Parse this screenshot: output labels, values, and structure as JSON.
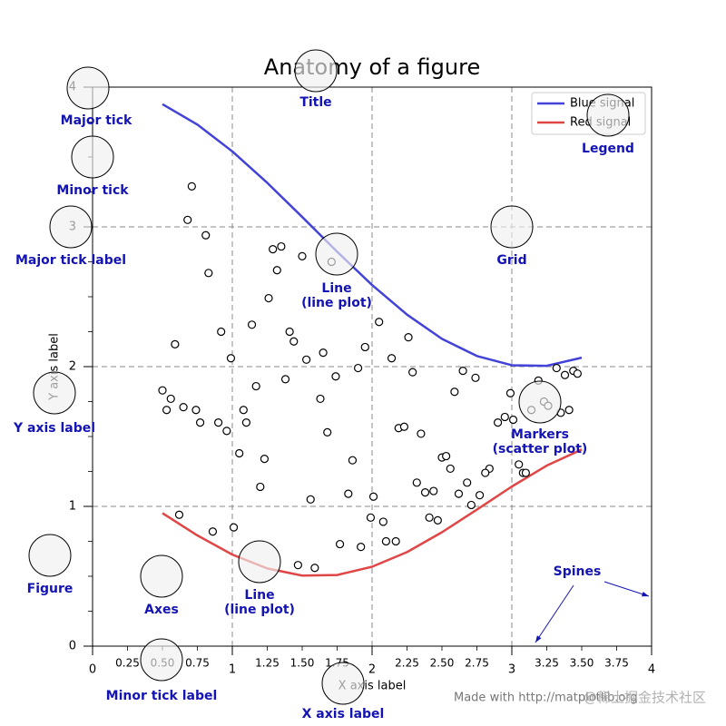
{
  "chart_data": {
    "type": "line",
    "title": "Anatomy of a figure",
    "xlabel": "X axis label",
    "ylabel": "Y axis label",
    "xlim": [
      0,
      4
    ],
    "ylim": [
      0,
      4
    ],
    "xticks": [
      0,
      1,
      2,
      3,
      4
    ],
    "xminor_ticks": [
      0.25,
      {
        "value": 0.5,
        "label": "0.50"
      },
      0.75,
      1.25,
      {
        "value": 1.5,
        "label": "1.50"
      },
      1.75,
      2.25,
      {
        "value": 2.5,
        "label": "2.50"
      },
      2.75,
      3.25,
      {
        "value": 3.5,
        "label": "3.50"
      },
      3.75
    ],
    "yticks": [
      0,
      1,
      2,
      3,
      4
    ],
    "yminor_ticks": [
      0.25,
      0.5,
      0.75,
      1.25,
      1.5,
      1.75,
      2.25,
      2.5,
      2.75,
      3.25,
      3.5,
      3.75
    ],
    "grid": true,
    "legend": "upper right",
    "x": [
      0.5,
      0.75,
      1.0,
      1.25,
      1.5,
      1.75,
      2.0,
      2.25,
      2.5,
      2.75,
      3.0,
      3.25,
      3.5
    ],
    "series": [
      {
        "name": "Blue signal",
        "color": "#4343d9",
        "values": [
          3.878,
          3.732,
          3.54,
          3.315,
          3.071,
          2.822,
          2.584,
          2.372,
          2.199,
          2.076,
          2.01,
          2.006,
          2.064
        ]
      },
      {
        "name": "Red signal",
        "color": "#e04646",
        "values": [
          0.952,
          0.792,
          0.655,
          0.556,
          0.505,
          0.509,
          0.568,
          0.673,
          0.815,
          0.977,
          1.142,
          1.292,
          1.407
        ]
      }
    ],
    "scatter": {
      "x": [
        0.71,
        0.68,
        0.81,
        0.83,
        1.29,
        1.35,
        1.32,
        1.5,
        1.71,
        1.26,
        1.14,
        0.92,
        0.59,
        0.99,
        1.41,
        1.44,
        1.65,
        1.53,
        1.95,
        2.05,
        2.26,
        2.14,
        1.9,
        1.74,
        1.38,
        1.17,
        0.5,
        0.56,
        0.53,
        0.65,
        0.74,
        0.77,
        0.9,
        0.96,
        1.08,
        1.1,
        1.63,
        1.68,
        2.29,
        2.59,
        2.65,
        2.74,
        2.19,
        2.23,
        2.35,
        1.05,
        1.23,
        1.86,
        2.5,
        2.53,
        2.56,
        2.84,
        2.81,
        2.32,
        2.38,
        2.44,
        2.68,
        2.62,
        2.77,
        2.71,
        1.2,
        1.56,
        1.83,
        2.01,
        1.99,
        2.08,
        2.1,
        2.17,
        2.41,
        2.47,
        0.62,
        0.86,
        1.01,
        1.77,
        1.92,
        1.47,
        1.59,
        2.9,
        2.95,
        3.01,
        2.99,
        3.14,
        3.23,
        3.26,
        3.35,
        3.41,
        3.32,
        3.38,
        3.44,
        3.47,
        3.19,
        3.05,
        3.08,
        3.1
      ],
      "y": [
        3.29,
        3.05,
        2.94,
        2.67,
        2.84,
        2.86,
        2.69,
        2.79,
        2.75,
        2.49,
        2.3,
        2.25,
        2.16,
        2.06,
        2.25,
        2.18,
        2.1,
        2.05,
        2.14,
        2.32,
        2.21,
        2.06,
        1.99,
        1.93,
        1.91,
        1.86,
        1.83,
        1.77,
        1.69,
        1.71,
        1.69,
        1.6,
        1.6,
        1.54,
        1.69,
        1.6,
        1.77,
        1.53,
        1.96,
        1.82,
        1.97,
        1.92,
        1.56,
        1.57,
        1.52,
        1.38,
        1.34,
        1.33,
        1.35,
        1.36,
        1.27,
        1.27,
        1.24,
        1.17,
        1.1,
        1.11,
        1.17,
        1.09,
        1.08,
        1.01,
        1.14,
        1.05,
        1.09,
        1.07,
        0.92,
        0.89,
        0.75,
        0.75,
        0.92,
        0.9,
        0.94,
        0.82,
        0.85,
        0.73,
        0.71,
        0.58,
        0.56,
        1.6,
        1.64,
        1.62,
        1.81,
        1.69,
        1.75,
        1.72,
        1.67,
        1.69,
        1.99,
        1.94,
        1.97,
        1.95,
        1.9,
        1.3,
        1.24,
        1.24
      ]
    },
    "annotations": [
      {
        "lines": [
          "Major tick"
        ]
      },
      {
        "lines": [
          "Minor tick"
        ]
      },
      {
        "lines": [
          "Major tick label"
        ]
      },
      {
        "lines": [
          "Y axis label"
        ]
      },
      {
        "lines": [
          "Figure"
        ]
      },
      {
        "lines": [
          "Axes"
        ]
      },
      {
        "lines": [
          "Line",
          "(line plot)"
        ]
      },
      {
        "lines": [
          "Minor tick label"
        ]
      },
      {
        "lines": [
          "X axis label"
        ]
      },
      {
        "lines": [
          "Title"
        ]
      },
      {
        "lines": [
          "Grid"
        ]
      },
      {
        "lines": [
          "Legend"
        ]
      },
      {
        "lines": [
          "Line",
          "(line plot)"
        ]
      },
      {
        "lines": [
          "Markers",
          "(scatter plot)"
        ]
      },
      {
        "lines": [
          "Spines"
        ]
      }
    ],
    "footer": "Made with http://matplotlib.org"
  },
  "watermark": "@稀土掘金技术社区"
}
